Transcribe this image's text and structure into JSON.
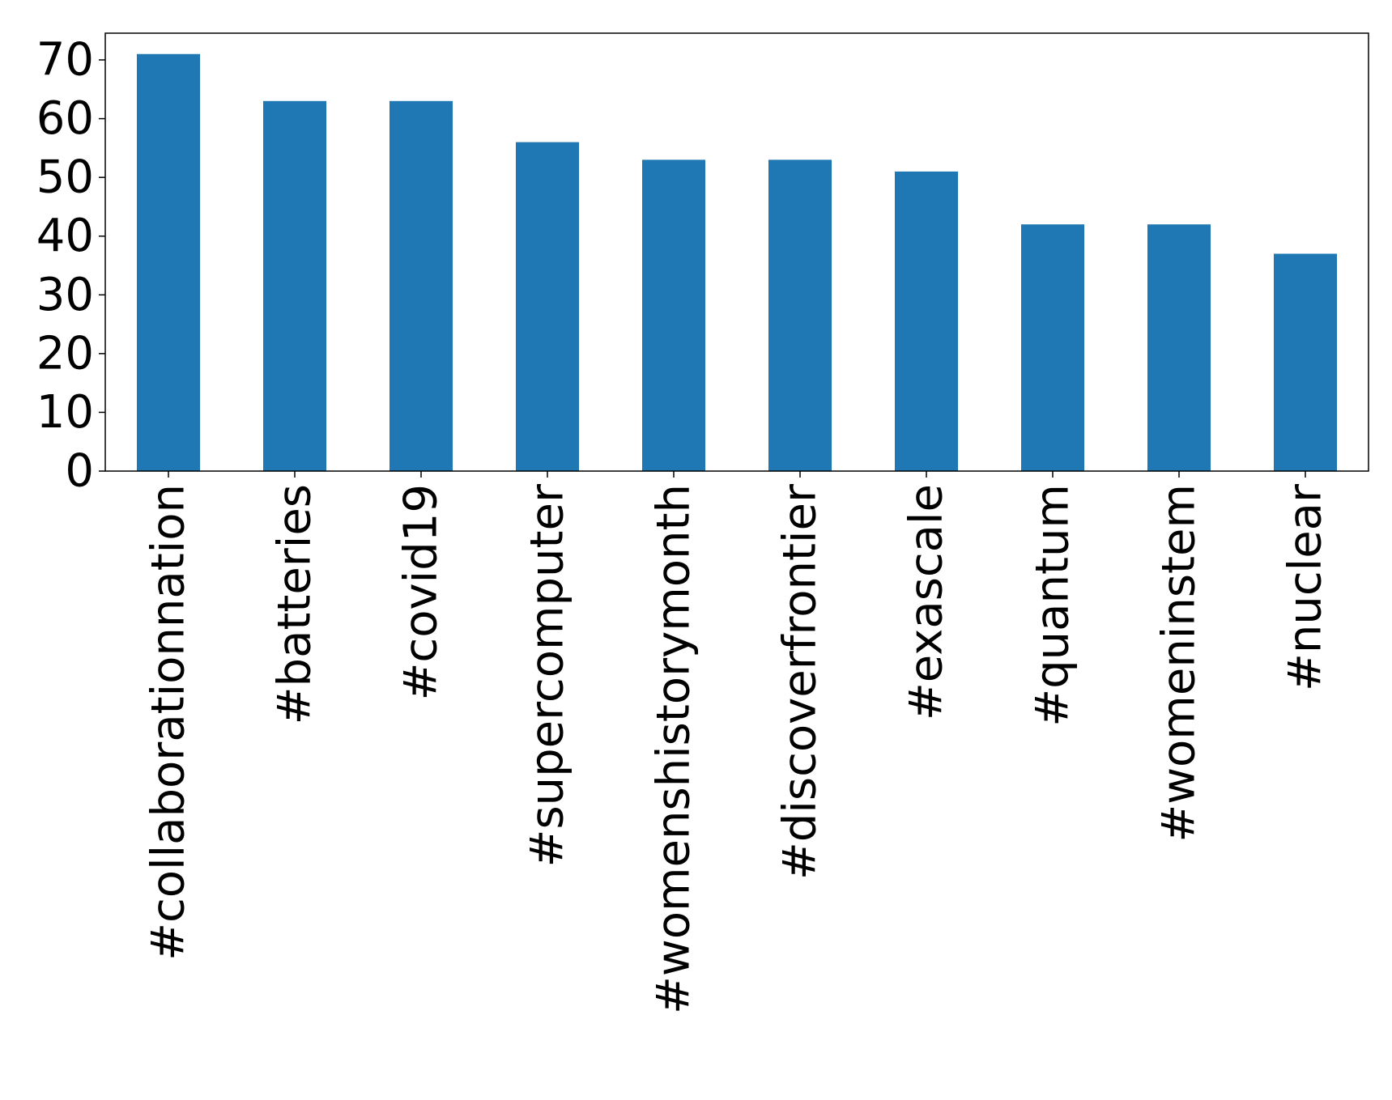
{
  "chart_data": {
    "type": "bar",
    "title": "",
    "xlabel": "",
    "ylabel": "",
    "categories": [
      "#collaborationnation",
      "#batteries",
      "#covid19",
      "#supercomputer",
      "#womenshistorymonth",
      "#discoverfrontier",
      "#exascale",
      "#quantum",
      "#womeninstem",
      "#nuclear"
    ],
    "values": [
      71,
      63,
      63,
      56,
      53,
      53,
      51,
      42,
      42,
      37
    ],
    "yticks": [
      0,
      10,
      20,
      30,
      40,
      50,
      60,
      70
    ],
    "ylim": [
      0,
      74.55
    ],
    "grid": false,
    "legend": "none",
    "colors": {
      "bar": "#1f77b4",
      "axis": "#000000",
      "text": "#000000",
      "background": "#ffffff"
    }
  }
}
